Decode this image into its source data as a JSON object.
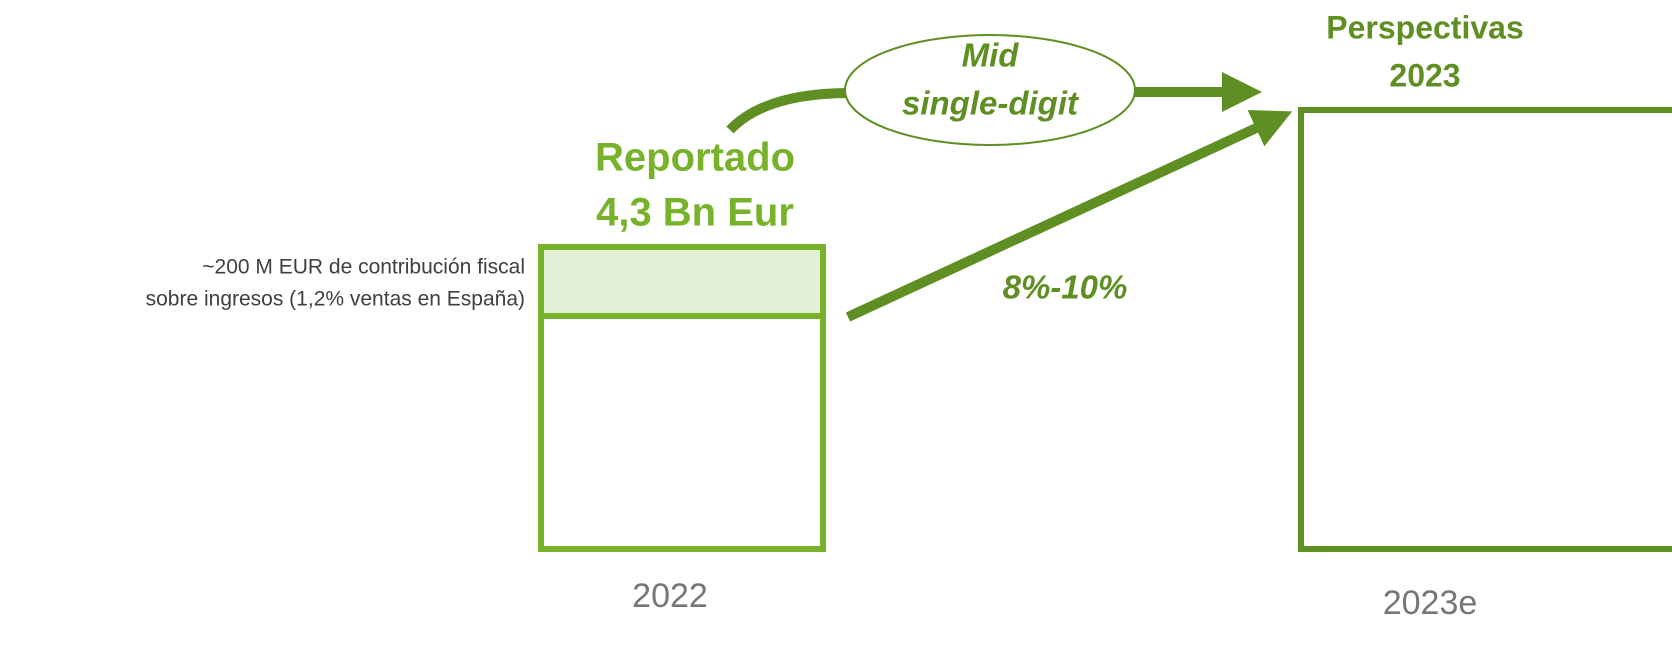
{
  "annotation": {
    "lines": [
      "~200 M EUR de contribución fiscal",
      "sobre ingresos (1,2% ventas en España)"
    ]
  },
  "reported": {
    "title": "Reportado",
    "value": "4,3 Bn Eur",
    "year": "2022"
  },
  "growth_arrows": {
    "curved_label": [
      "Mid",
      "single-digit"
    ],
    "straight_label": "8%-10%"
  },
  "outlook": {
    "title": [
      "Perspectivas",
      "2023"
    ],
    "year": "2023e"
  }
}
